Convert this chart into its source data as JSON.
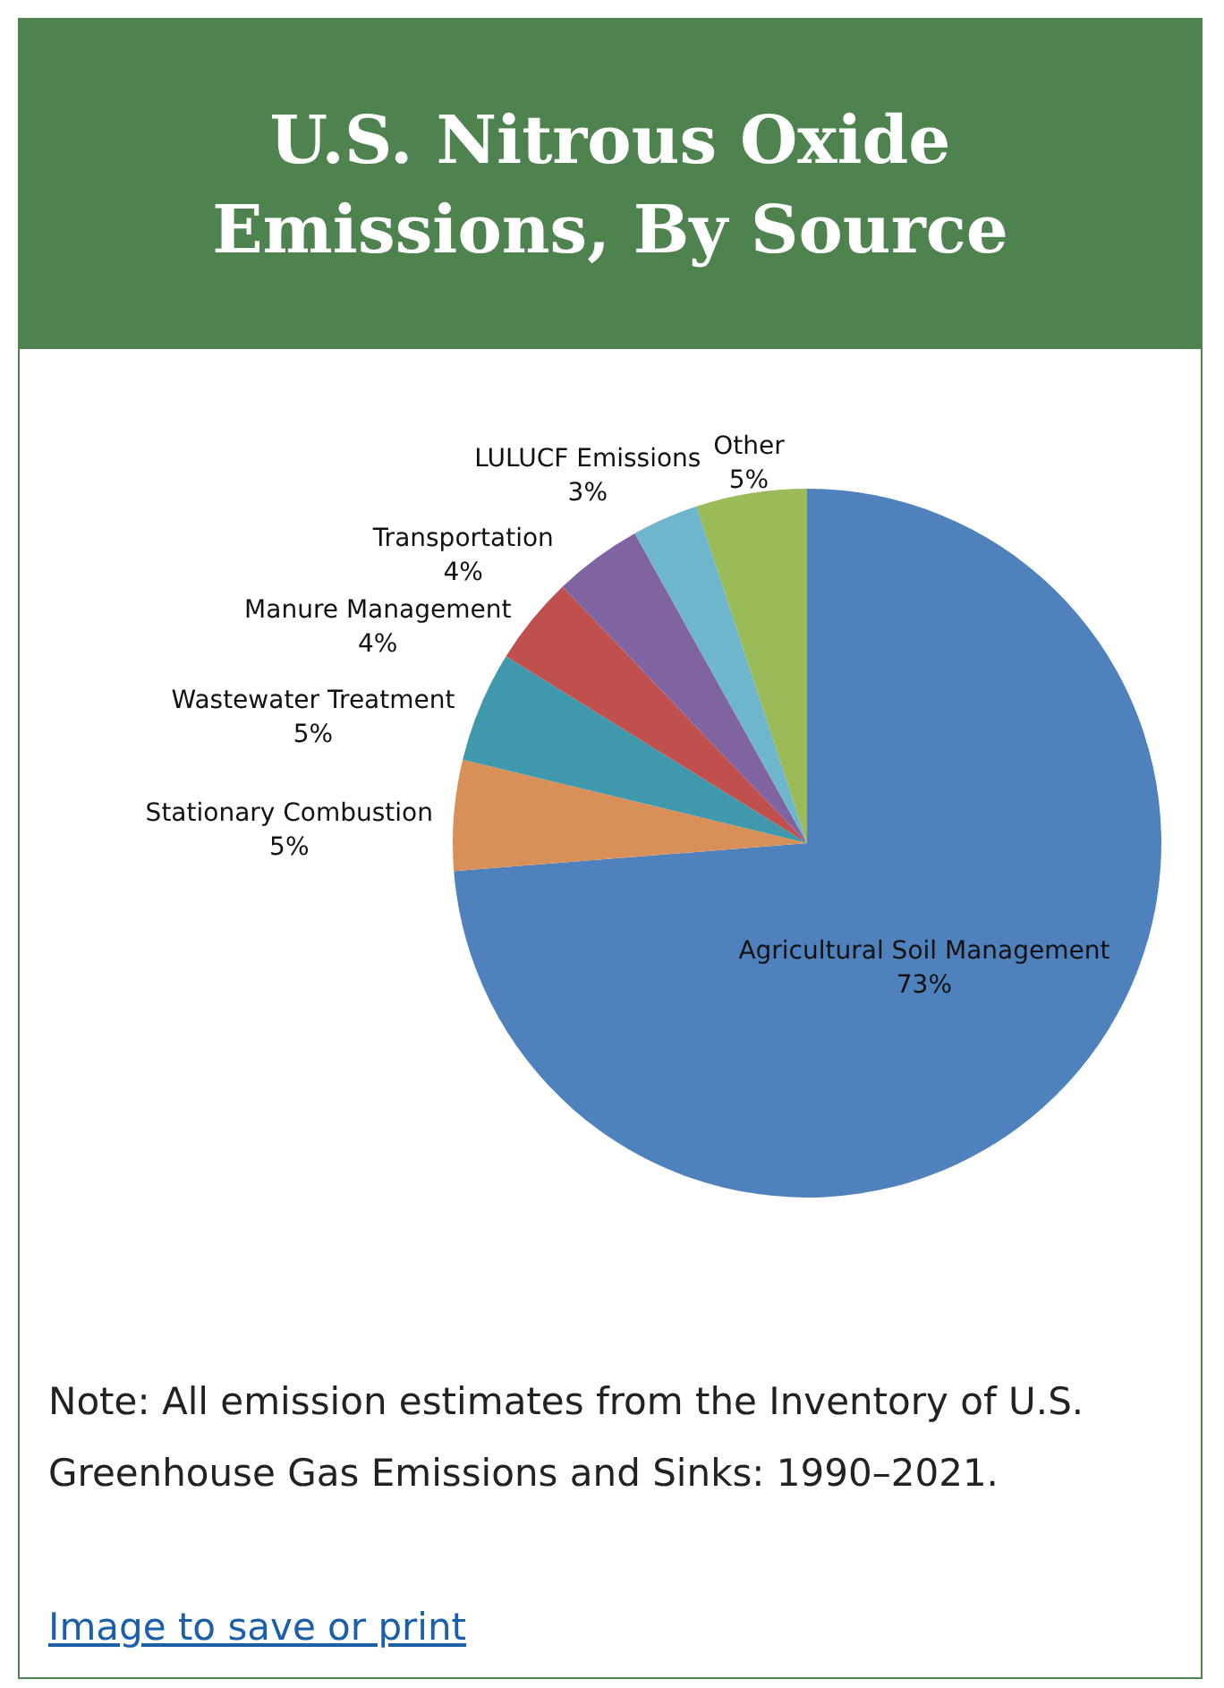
{
  "chart_data": {
    "type": "pie",
    "title": "U.S. Nitrous Oxide Emissions, By Source",
    "categories": [
      "Agricultural Soil Management",
      "Stationary Combustion",
      "Wastewater Treatment",
      "Manure Management",
      "Transportation",
      "LULUCF Emissions",
      "Other"
    ],
    "values": [
      73,
      5,
      5,
      4,
      4,
      3,
      5
    ],
    "value_labels": [
      "73%",
      "5%",
      "5%",
      "4%",
      "4%",
      "3%",
      "5%"
    ],
    "colors": [
      "#4f81bd",
      "#d99058",
      "#3f98ac",
      "#c0504d",
      "#8064a2",
      "#6db6cb",
      "#9bbb59"
    ],
    "annotations": [
      "Note: All emission estimates from the Inventory of U.S. Greenhouse Gas Emissions and Sinks: 1990–2021.",
      "Image to save or print"
    ]
  }
}
